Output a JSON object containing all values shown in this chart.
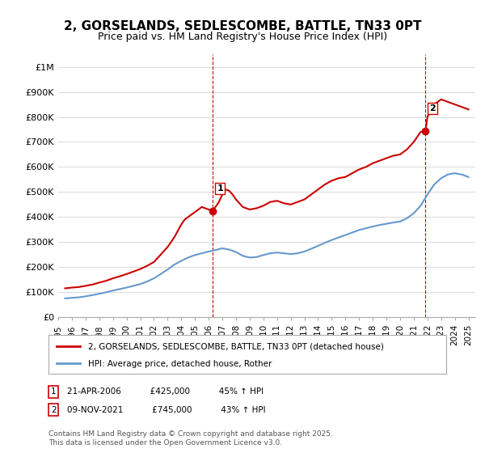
{
  "title": "2, GORSELANDS, SEDLESCOMBE, BATTLE, TN33 0PT",
  "subtitle": "Price paid vs. HM Land Registry's House Price Index (HPI)",
  "title_fontsize": 11,
  "subtitle_fontsize": 9,
  "xlabel": "",
  "ylabel": "",
  "ylim": [
    0,
    1050000
  ],
  "yticks": [
    0,
    100000,
    200000,
    300000,
    400000,
    500000,
    600000,
    700000,
    800000,
    900000,
    1000000
  ],
  "ytick_labels": [
    "£0",
    "£100K",
    "£200K",
    "£300K",
    "£400K",
    "£500K",
    "£600K",
    "£700K",
    "£800K",
    "£900K",
    "£1M"
  ],
  "background_color": "#ffffff",
  "plot_bg_color": "#ffffff",
  "grid_color": "#dddddd",
  "house_color": "#cc0000",
  "hpi_color": "#6699cc",
  "marker1_date": 2006.3,
  "marker1_price": 425000,
  "marker1_label": "1",
  "marker2_date": 2021.86,
  "marker2_price": 745000,
  "marker2_label": "2",
  "legend_house": "2, GORSELANDS, SEDLESCOMBE, BATTLE, TN33 0PT (detached house)",
  "legend_hpi": "HPI: Average price, detached house, Rother",
  "annotation1": "1    21-APR-2006         £425,000        45% ↑ HPI",
  "annotation2": "2    09-NOV-2021         £745,000        43% ↑ HPI",
  "footnote": "Contains HM Land Registry data © Crown copyright and database right 2025.\nThis data is licensed under the Open Government Licence v3.0.",
  "house_x": [
    1995.5,
    1996.0,
    1996.5,
    1997.0,
    1997.5,
    1998.0,
    1998.5,
    1999.0,
    1999.5,
    2000.0,
    2000.5,
    2001.0,
    2001.5,
    2002.0,
    2002.5,
    2003.0,
    2003.5,
    2004.0,
    2004.25,
    2004.5,
    2004.75,
    2005.0,
    2005.25,
    2005.5,
    2005.75,
    2006.0,
    2006.3,
    2006.5,
    2006.75,
    2007.0,
    2007.25,
    2007.5,
    2007.75,
    2008.0,
    2008.5,
    2009.0,
    2009.5,
    2010.0,
    2010.5,
    2011.0,
    2011.5,
    2012.0,
    2012.5,
    2013.0,
    2013.5,
    2014.0,
    2014.5,
    2015.0,
    2015.5,
    2016.0,
    2016.5,
    2017.0,
    2017.5,
    2018.0,
    2018.5,
    2019.0,
    2019.5,
    2020.0,
    2020.5,
    2021.0,
    2021.5,
    2021.86,
    2022.0,
    2022.5,
    2023.0,
    2023.5,
    2024.0,
    2024.5,
    2025.0
  ],
  "house_y": [
    115000,
    118000,
    120000,
    125000,
    130000,
    138000,
    145000,
    155000,
    163000,
    172000,
    182000,
    192000,
    205000,
    220000,
    250000,
    280000,
    320000,
    370000,
    390000,
    400000,
    410000,
    420000,
    430000,
    440000,
    435000,
    430000,
    425000,
    440000,
    460000,
    490000,
    510000,
    505000,
    490000,
    470000,
    440000,
    430000,
    435000,
    445000,
    460000,
    465000,
    455000,
    450000,
    460000,
    470000,
    490000,
    510000,
    530000,
    545000,
    555000,
    560000,
    575000,
    590000,
    600000,
    615000,
    625000,
    635000,
    645000,
    650000,
    670000,
    700000,
    740000,
    745000,
    800000,
    850000,
    870000,
    860000,
    850000,
    840000,
    830000
  ],
  "hpi_x": [
    1995.5,
    1996.0,
    1996.5,
    1997.0,
    1997.5,
    1998.0,
    1998.5,
    1999.0,
    1999.5,
    2000.0,
    2000.5,
    2001.0,
    2001.5,
    2002.0,
    2002.5,
    2003.0,
    2003.5,
    2004.0,
    2004.5,
    2005.0,
    2005.5,
    2006.0,
    2006.5,
    2007.0,
    2007.5,
    2008.0,
    2008.5,
    2009.0,
    2009.5,
    2010.0,
    2010.5,
    2011.0,
    2011.5,
    2012.0,
    2012.5,
    2013.0,
    2013.5,
    2014.0,
    2014.5,
    2015.0,
    2015.5,
    2016.0,
    2016.5,
    2017.0,
    2017.5,
    2018.0,
    2018.5,
    2019.0,
    2019.5,
    2020.0,
    2020.5,
    2021.0,
    2021.5,
    2022.0,
    2022.5,
    2023.0,
    2023.5,
    2024.0,
    2024.5,
    2025.0
  ],
  "hpi_y": [
    75000,
    77000,
    79000,
    83000,
    88000,
    93000,
    99000,
    106000,
    112000,
    118000,
    125000,
    132000,
    142000,
    155000,
    172000,
    190000,
    210000,
    225000,
    238000,
    248000,
    255000,
    262000,
    268000,
    275000,
    270000,
    260000,
    245000,
    238000,
    240000,
    248000,
    255000,
    258000,
    255000,
    252000,
    255000,
    262000,
    273000,
    285000,
    297000,
    308000,
    318000,
    328000,
    338000,
    348000,
    355000,
    362000,
    368000,
    373000,
    378000,
    382000,
    395000,
    415000,
    445000,
    490000,
    530000,
    555000,
    570000,
    575000,
    570000,
    560000
  ]
}
